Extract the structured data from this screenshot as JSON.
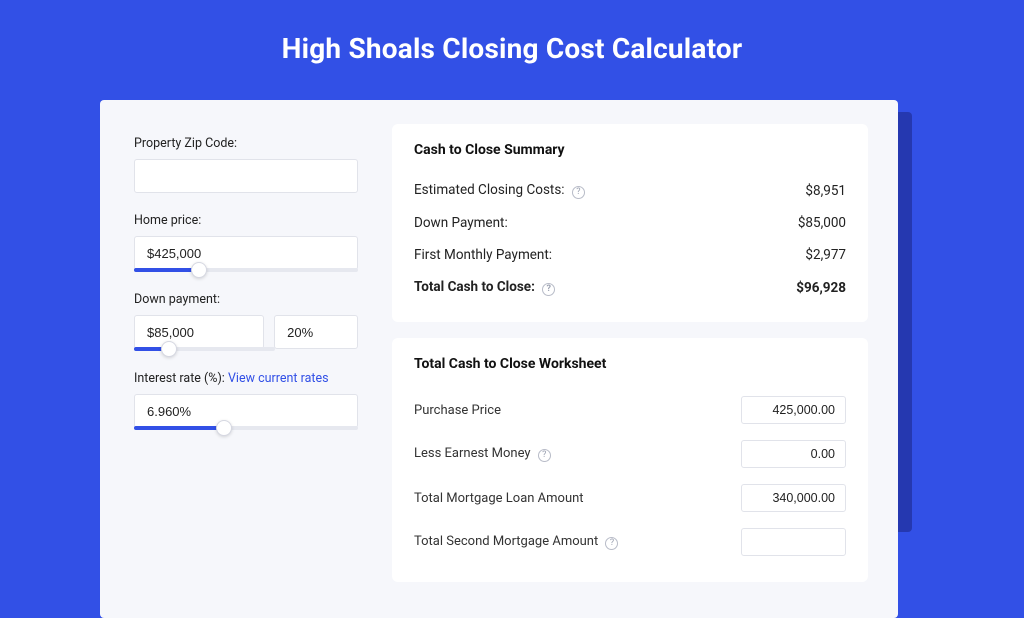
{
  "colors": {
    "page_bg": "#3250e6",
    "shadow": "#2538b0",
    "card_bg": "#f6f7fb",
    "panel_bg": "#ffffff",
    "border": "#e1e3ea",
    "text": "#222222",
    "label": "#222222",
    "link": "#3250e6",
    "slider_fill": "#3250e6",
    "slider_track": "#e6e8ef"
  },
  "title": "High Shoals Closing Cost Calculator",
  "form": {
    "zip": {
      "label": "Property Zip Code:",
      "value": ""
    },
    "homePrice": {
      "label": "Home price:",
      "value": "$425,000",
      "slider_percent": 29
    },
    "downPayment": {
      "label": "Down payment:",
      "amount": "$85,000",
      "percent": "20%",
      "slider_percent": 25
    },
    "interest": {
      "label": "Interest rate (%):",
      "link_text": "View current rates",
      "value": "6.960%",
      "slider_percent": 40
    }
  },
  "summary": {
    "title": "Cash to Close Summary",
    "rows": [
      {
        "label": "Estimated Closing Costs:",
        "help": true,
        "value": "$8,951",
        "bold": false
      },
      {
        "label": "Down Payment:",
        "help": false,
        "value": "$85,000",
        "bold": false
      },
      {
        "label": "First Monthly Payment:",
        "help": false,
        "value": "$2,977",
        "bold": false
      },
      {
        "label": "Total Cash to Close:",
        "help": true,
        "value": "$96,928",
        "bold": true
      }
    ]
  },
  "worksheet": {
    "title": "Total Cash to Close Worksheet",
    "rows": [
      {
        "label": "Purchase Price",
        "help": false,
        "value": "425,000.00"
      },
      {
        "label": "Less Earnest Money",
        "help": true,
        "value": "0.00"
      },
      {
        "label": "Total Mortgage Loan Amount",
        "help": false,
        "value": "340,000.00"
      },
      {
        "label": "Total Second Mortgage Amount",
        "help": true,
        "value": ""
      }
    ]
  }
}
